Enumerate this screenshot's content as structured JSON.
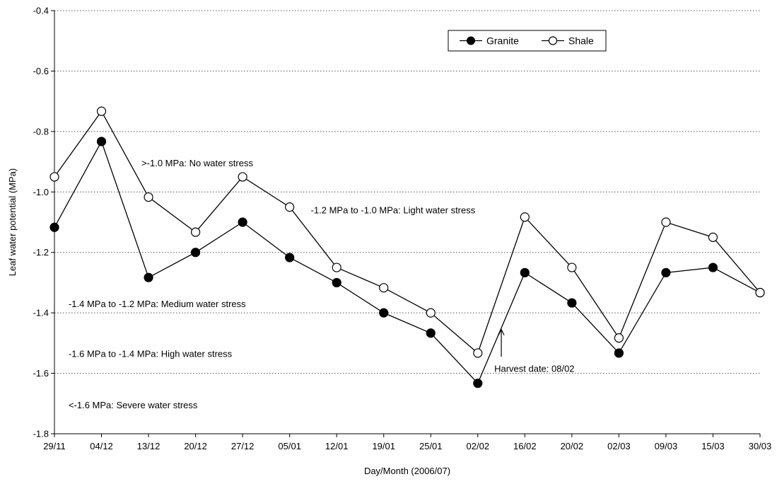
{
  "chart_data": {
    "type": "line",
    "title": "",
    "xlabel": "Day/Month (2006/07)",
    "ylabel": "Leaf water potential (MPa)",
    "ylim": [
      -1.8,
      -0.4
    ],
    "yticks": [
      -1.8,
      -1.6,
      -1.4,
      -1.2,
      -1.0,
      -0.8,
      -0.6,
      -0.4
    ],
    "ytick_labels": [
      "-1.8",
      "-1.6",
      "-1.4",
      "-1.2",
      "-1.0",
      "-0.8",
      "-0.6",
      "-0.4"
    ],
    "grid": "horizontal dotted",
    "legend_position": "top-right",
    "categories": [
      "29/11",
      "04/12",
      "13/12",
      "20/12",
      "27/12",
      "05/01",
      "12/01",
      "19/01",
      "25/01",
      "02/02",
      "16/02",
      "20/02",
      "02/03",
      "09/03",
      "15/03",
      "30/03"
    ],
    "series": [
      {
        "name": "Granite",
        "marker": "filled-circle",
        "color": "#000000",
        "values": [
          -1.117,
          -0.833,
          -1.283,
          -1.2,
          -1.1,
          -1.217,
          -1.3,
          -1.4,
          -1.467,
          -1.633,
          -1.267,
          -1.367,
          -1.533,
          -1.267,
          -1.25,
          -1.333
        ]
      },
      {
        "name": "Shale",
        "marker": "open-circle",
        "color": "#000000",
        "values": [
          -0.95,
          -0.733,
          -1.017,
          -1.133,
          -0.95,
          -1.05,
          -1.25,
          -1.317,
          -1.4,
          -1.533,
          -1.083,
          -1.25,
          -1.483,
          -1.1,
          -1.15,
          -1.333
        ]
      }
    ],
    "annotations": [
      {
        "text": ">-1.0 MPa: No water stress",
        "x_category": "04/12",
        "y": -0.905,
        "anchor": "start",
        "x_offset": 0.85
      },
      {
        "text": "-1.2 MPa to -1.0 MPa: Light water stress",
        "x_category": "05/01",
        "y": -1.06,
        "anchor": "start",
        "x_offset": 0.45
      },
      {
        "text": "-1.4 MPa to -1.2 MPa: Medium water stress",
        "x_category": "29/11",
        "y": -1.37,
        "anchor": "start",
        "x_offset": 0.3
      },
      {
        "text": "-1.6 MPa to -1.4 MPa: High water stress",
        "x_category": "29/11",
        "y": -1.535,
        "anchor": "start",
        "x_offset": 0.3
      },
      {
        "text": "<-1.6 MPa: Severe water stress",
        "x_category": "29/11",
        "y": -1.705,
        "anchor": "start",
        "x_offset": 0.3
      },
      {
        "text": "Harvest date: 08/02",
        "x_category": "02/02",
        "y": -1.585,
        "anchor": "start",
        "x_offset": 0.35
      }
    ],
    "harvest_arrow": {
      "x_category": "02/02",
      "x_offset": 0.5,
      "y_from": -1.545,
      "y_to": -1.455
    }
  }
}
